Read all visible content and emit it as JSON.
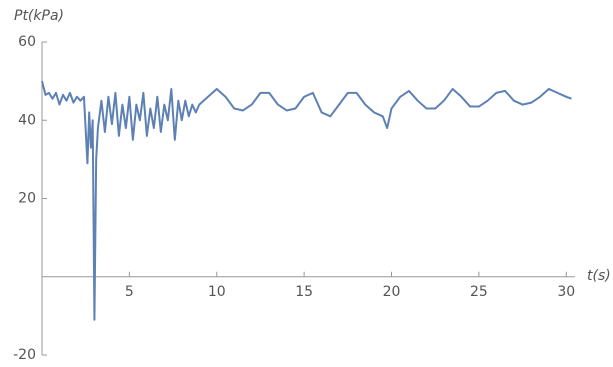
{
  "chart_data": {
    "type": "line",
    "y_label": "Pt(kPa)",
    "x_label": "t(s)",
    "x": [
      0,
      0.2,
      0.4,
      0.6,
      0.8,
      1.0,
      1.2,
      1.4,
      1.6,
      1.8,
      2.0,
      2.2,
      2.4,
      2.6,
      2.7,
      2.8,
      2.9,
      3.0,
      3.1,
      3.2,
      3.4,
      3.6,
      3.8,
      4.0,
      4.2,
      4.4,
      4.6,
      4.8,
      5.0,
      5.2,
      5.4,
      5.6,
      5.8,
      6.0,
      6.2,
      6.4,
      6.6,
      6.8,
      7.0,
      7.2,
      7.4,
      7.6,
      7.8,
      8.0,
      8.2,
      8.4,
      8.6,
      8.8,
      9.0,
      9.5,
      10,
      10.5,
      11,
      11.5,
      12,
      12.5,
      13,
      13.5,
      14,
      14.5,
      15,
      15.5,
      16,
      16.5,
      17,
      17.5,
      18,
      18.5,
      19,
      19.5,
      19.75,
      20,
      20.5,
      21,
      21.5,
      22,
      22.5,
      23,
      23.5,
      24,
      24.5,
      25,
      25.5,
      26,
      26.5,
      27,
      27.5,
      28,
      28.5,
      29,
      29.5,
      30,
      30.3
    ],
    "series": [
      {
        "color": "#5e81b5",
        "values": [
          50,
          46.5,
          47,
          45.5,
          47,
          44,
          46.5,
          45,
          47,
          44.5,
          46,
          45,
          46,
          29,
          42,
          33,
          40,
          -11,
          30,
          38,
          45,
          37,
          46,
          39,
          47,
          36,
          44,
          38,
          46,
          35,
          44,
          40,
          47,
          36,
          43,
          38,
          46,
          37,
          44,
          40,
          48,
          35,
          45,
          40,
          45,
          41,
          44,
          42,
          44,
          46,
          48,
          46,
          43,
          42.5,
          44,
          47,
          47,
          44,
          42.5,
          43,
          46,
          47,
          42,
          41,
          44,
          47,
          47,
          44,
          42,
          41,
          38,
          43,
          46,
          47.5,
          45,
          43,
          43,
          45,
          48,
          46,
          43.5,
          43.5,
          45,
          47,
          47.5,
          45,
          44,
          44.5,
          46,
          48,
          47,
          46,
          45.5
        ]
      }
    ],
    "xlim": [
      0,
      30.5
    ],
    "ylim": [
      -20,
      60
    ],
    "xticks": [
      5,
      10,
      15,
      20,
      25,
      30
    ],
    "yticks": [
      -20,
      20,
      40,
      60
    ]
  }
}
